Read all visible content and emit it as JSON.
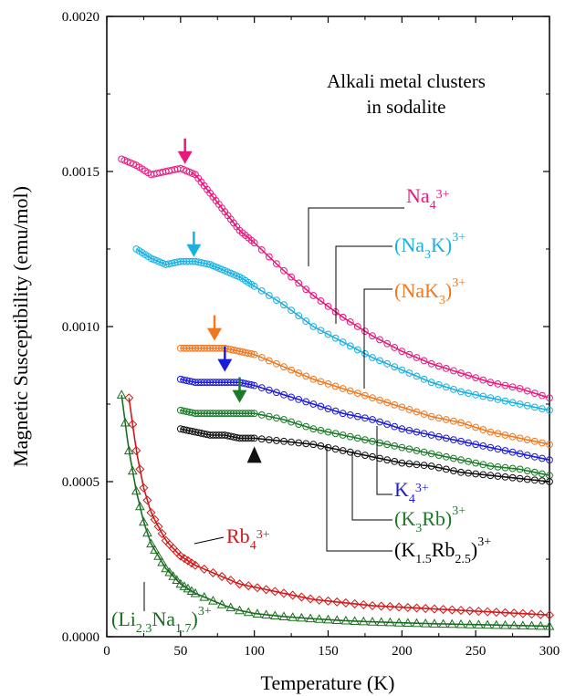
{
  "chart_data": {
    "type": "scatter",
    "annotation": [
      "Alkali metal clusters",
      "in sodalite"
    ],
    "xlabel": "Temperature (K)",
    "ylabel": "Magnetic Susceptibility (emu/mol)",
    "xlim": [
      0,
      300
    ],
    "ylim": [
      0,
      0.002
    ],
    "x_ticks": [
      0,
      50,
      100,
      150,
      200,
      250,
      300
    ],
    "x_tick_labels": [
      "0",
      "50",
      "100",
      "150",
      "200",
      "250",
      "300"
    ],
    "y_ticks": [
      0,
      0.0005,
      0.001,
      0.0015,
      0.002
    ],
    "y_tick_labels": [
      "0.0000",
      "0.0005",
      "0.0010",
      "0.0015",
      "0.0020"
    ],
    "grid": false,
    "series": [
      {
        "base": "Na",
        "sub": "4",
        "post": "",
        "sup": "3+",
        "color": "#e8197e",
        "marker": "circle",
        "x_start": 10,
        "fit_start": 57,
        "points": [
          [
            10,
            0.00154
          ],
          [
            20,
            0.00152
          ],
          [
            30,
            0.00149
          ],
          [
            40,
            0.0015
          ],
          [
            50,
            0.00151
          ],
          [
            60,
            0.00149
          ],
          [
            70,
            0.00143
          ],
          [
            80,
            0.00137
          ],
          [
            90,
            0.00131
          ],
          [
            100,
            0.00127
          ],
          [
            120,
            0.00118
          ],
          [
            140,
            0.0011
          ],
          [
            160,
            0.00103
          ],
          [
            180,
            0.00097
          ],
          [
            200,
            0.00092
          ],
          [
            220,
            0.00088
          ],
          [
            240,
            0.00085
          ],
          [
            260,
            0.00082
          ],
          [
            280,
            0.0008
          ],
          [
            300,
            0.00077
          ]
        ],
        "transition_arrow": {
          "x": 53,
          "y": 0.00153,
          "direction": "down"
        }
      },
      {
        "base": "(Na",
        "sub": "3",
        "post": "K)",
        "sup": "3+",
        "color": "#1ab0e0",
        "marker": "circle",
        "x_start": 20,
        "points": [
          [
            20,
            0.00125
          ],
          [
            30,
            0.00122
          ],
          [
            40,
            0.0012
          ],
          [
            50,
            0.00121
          ],
          [
            60,
            0.00121
          ],
          [
            70,
            0.0012
          ],
          [
            80,
            0.00118
          ],
          [
            90,
            0.00116
          ],
          [
            100,
            0.00113
          ],
          [
            120,
            0.00107
          ],
          [
            140,
            0.001
          ],
          [
            160,
            0.00095
          ],
          [
            180,
            0.0009
          ],
          [
            200,
            0.00086
          ],
          [
            220,
            0.00082
          ],
          [
            240,
            0.00079
          ],
          [
            260,
            0.00077
          ],
          [
            280,
            0.00075
          ],
          [
            300,
            0.00073
          ]
        ],
        "transition_arrow": {
          "x": 59,
          "y": 0.00123,
          "direction": "down"
        }
      },
      {
        "base": "(NaK",
        "sub": "3",
        "post": ")",
        "sup": "3+",
        "color": "#f07820",
        "marker": "circle",
        "x_start": 50,
        "points": [
          [
            50,
            0.00093
          ],
          [
            60,
            0.00093
          ],
          [
            70,
            0.00093
          ],
          [
            80,
            0.00093
          ],
          [
            90,
            0.00092
          ],
          [
            100,
            0.00091
          ],
          [
            120,
            0.00087
          ],
          [
            140,
            0.00083
          ],
          [
            160,
            0.0008
          ],
          [
            180,
            0.00077
          ],
          [
            200,
            0.00074
          ],
          [
            220,
            0.00071
          ],
          [
            240,
            0.00069
          ],
          [
            260,
            0.00066
          ],
          [
            280,
            0.00064
          ],
          [
            300,
            0.00062
          ]
        ],
        "transition_arrow": {
          "x": 73,
          "y": 0.00096,
          "direction": "down"
        }
      },
      {
        "base": "K",
        "sub": "4",
        "post": "",
        "sup": "3+",
        "color": "#1c1cd8",
        "marker": "circle",
        "x_start": 50,
        "points": [
          [
            50,
            0.00083
          ],
          [
            60,
            0.00082
          ],
          [
            70,
            0.00082
          ],
          [
            80,
            0.00082
          ],
          [
            90,
            0.00082
          ],
          [
            100,
            0.00081
          ],
          [
            120,
            0.00078
          ],
          [
            140,
            0.00075
          ],
          [
            160,
            0.00072
          ],
          [
            180,
            0.0007
          ],
          [
            200,
            0.00067
          ],
          [
            220,
            0.00065
          ],
          [
            240,
            0.00063
          ],
          [
            260,
            0.00061
          ],
          [
            280,
            0.00059
          ],
          [
            300,
            0.00057
          ]
        ],
        "transition_arrow": {
          "x": 80,
          "y": 0.00086,
          "direction": "down"
        }
      },
      {
        "base": "(K",
        "sub": "3",
        "post": "Rb)",
        "sup": "3+",
        "color": "#1a7a28",
        "marker": "circle",
        "x_start": 50,
        "points": [
          [
            50,
            0.00073
          ],
          [
            60,
            0.00072
          ],
          [
            70,
            0.00072
          ],
          [
            80,
            0.00072
          ],
          [
            90,
            0.00072
          ],
          [
            100,
            0.00072
          ],
          [
            120,
            0.0007
          ],
          [
            140,
            0.00067
          ],
          [
            160,
            0.00065
          ],
          [
            180,
            0.00063
          ],
          [
            200,
            0.00061
          ],
          [
            220,
            0.00059
          ],
          [
            240,
            0.00057
          ],
          [
            260,
            0.00055
          ],
          [
            280,
            0.00054
          ],
          [
            300,
            0.00052
          ]
        ],
        "transition_arrow": {
          "x": 90,
          "y": 0.00076,
          "direction": "down"
        }
      },
      {
        "base": "(K",
        "sub": "1.5",
        "post": "Rb",
        "sub2": "2.5",
        "post2": ")",
        "sup": "3+",
        "color": "#111111",
        "marker": "circle",
        "x_start": 50,
        "points": [
          [
            50,
            0.00067
          ],
          [
            60,
            0.00066
          ],
          [
            70,
            0.00065
          ],
          [
            80,
            0.00065
          ],
          [
            90,
            0.00064
          ],
          [
            100,
            0.00064
          ],
          [
            120,
            0.00063
          ],
          [
            140,
            0.00062
          ],
          [
            160,
            0.0006
          ],
          [
            180,
            0.00058
          ],
          [
            200,
            0.00056
          ],
          [
            220,
            0.00055
          ],
          [
            240,
            0.00053
          ],
          [
            260,
            0.00052
          ],
          [
            280,
            0.00051
          ],
          [
            300,
            0.0005
          ]
        ],
        "transition_arrow": {
          "x": 100,
          "y": 0.00059,
          "direction": "up"
        }
      },
      {
        "base": "Rb",
        "sub": "4",
        "post": "",
        "sup": "3+",
        "color": "#d01818",
        "marker": "diamond",
        "x_start": 15,
        "points": [
          [
            15,
            0.00077
          ],
          [
            20,
            0.0006
          ],
          [
            25,
            0.00048
          ],
          [
            30,
            0.0004
          ],
          [
            40,
            0.00031
          ],
          [
            50,
            0.00026
          ],
          [
            60,
            0.00023
          ],
          [
            70,
            0.00021
          ],
          [
            80,
            0.00019
          ],
          [
            90,
            0.00017
          ],
          [
            100,
            0.00016
          ],
          [
            120,
            0.00014
          ],
          [
            140,
            0.00012
          ],
          [
            160,
            0.00011
          ],
          [
            180,
            0.0001
          ],
          [
            200,
            9.5e-05
          ],
          [
            220,
            9e-05
          ],
          [
            240,
            8.5e-05
          ],
          [
            260,
            8e-05
          ],
          [
            280,
            7.5e-05
          ],
          [
            300,
            7e-05
          ]
        ]
      },
      {
        "base": "(Li",
        "sub": "2.3",
        "post": "Na",
        "sub2": "1.7",
        "post2": ")",
        "sup": "3+",
        "color": "#1a6e20",
        "marker": "triangle",
        "x_start": 10,
        "points": [
          [
            10,
            0.00078
          ],
          [
            15,
            0.0006
          ],
          [
            20,
            0.00047
          ],
          [
            25,
            0.00037
          ],
          [
            30,
            0.0003
          ],
          [
            40,
            0.00022
          ],
          [
            50,
            0.00017
          ],
          [
            60,
            0.00014
          ],
          [
            70,
            0.00012
          ],
          [
            80,
            0.0001
          ],
          [
            90,
            8.5e-05
          ],
          [
            100,
            7.5e-05
          ],
          [
            120,
            6.5e-05
          ],
          [
            140,
            5.8e-05
          ],
          [
            160,
            5.2e-05
          ],
          [
            180,
            4.8e-05
          ],
          [
            200,
            4.5e-05
          ],
          [
            220,
            4.2e-05
          ],
          [
            240,
            4e-05
          ],
          [
            260,
            3.8e-05
          ],
          [
            280,
            3.6e-05
          ],
          [
            300,
            3.4e-05
          ]
        ]
      }
    ]
  }
}
